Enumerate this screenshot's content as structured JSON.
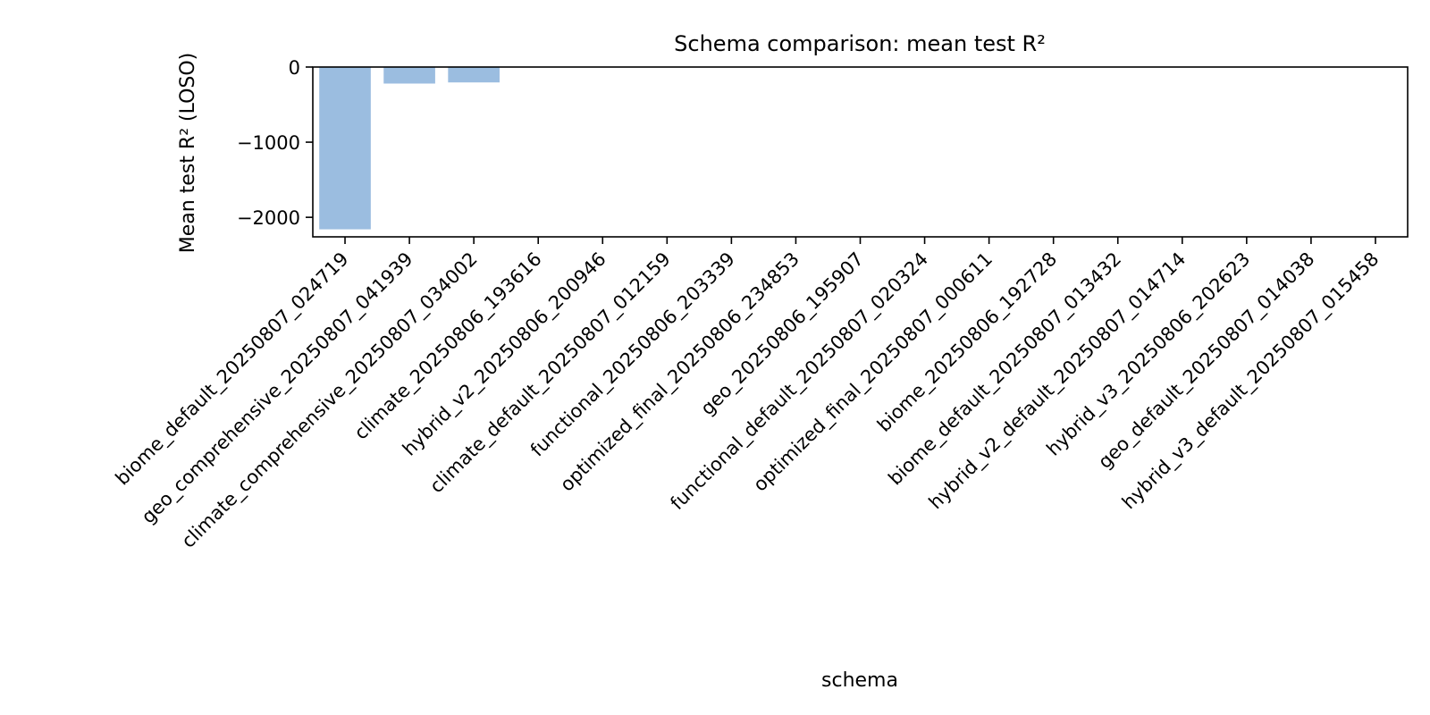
{
  "chart_data": {
    "type": "bar",
    "title": "Schema comparison: mean test R²",
    "xlabel": "schema",
    "ylabel": "Mean test R² (LOSO)",
    "ylim": [
      -2260,
      0
    ],
    "yticks": [
      0,
      -1000,
      -2000
    ],
    "ytick_labels": [
      "0",
      "−1000",
      "−2000"
    ],
    "bar_color": "#9bbde0",
    "categories": [
      "biome_default_20250807_024719",
      "geo_comprehensive_20250807_041939",
      "climate_comprehensive_20250807_034002",
      "climate_20250806_193616",
      "hybrid_v2_20250806_200946",
      "climate_default_20250807_012159",
      "functional_20250806_203339",
      "optimized_final_20250806_234853",
      "geo_20250806_195907",
      "functional_default_20250807_020324",
      "optimized_final_20250807_000611",
      "biome_20250806_192728",
      "biome_default_20250807_013432",
      "hybrid_v2_default_20250807_014714",
      "hybrid_v3_20250806_202623",
      "geo_default_20250807_014038",
      "hybrid_v3_default_20250807_015458"
    ],
    "values": [
      -2160,
      -220,
      -205,
      -1,
      -1,
      -1,
      -1,
      -1,
      -1,
      -1,
      -1,
      -1,
      -1,
      -1,
      -1,
      -1,
      -1
    ]
  }
}
